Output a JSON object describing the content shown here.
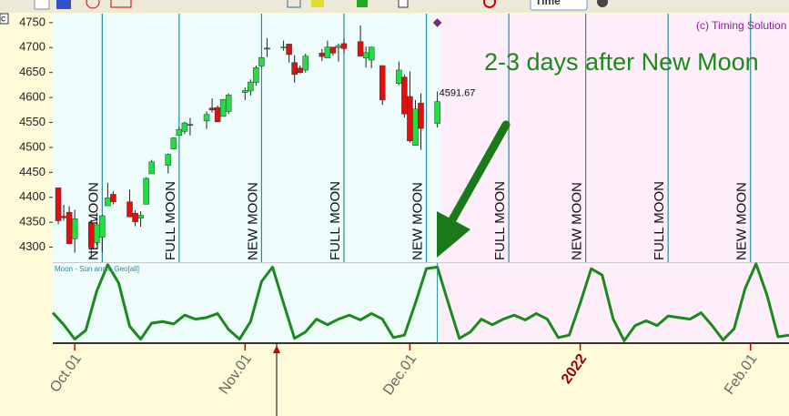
{
  "toolbar": {
    "corner_label": "c",
    "time_selector": "Time"
  },
  "chart_data": [
    {
      "type": "candlestick",
      "credit": "(c) Timing Solution",
      "annotation": "2-3 days after New Moon",
      "x": [
        -3,
        -2,
        -1,
        0,
        3,
        4,
        5,
        6,
        7,
        10,
        11,
        12,
        13,
        14,
        17,
        18,
        19,
        20,
        21,
        24,
        25,
        26,
        27,
        28,
        31,
        32,
        33,
        34,
        35,
        38,
        39,
        40,
        41,
        42,
        45,
        46,
        47,
        48,
        49,
        52,
        53,
        54,
        56,
        59,
        60,
        61,
        62,
        63,
        66
      ],
      "open": [
        4419,
        4362,
        4370,
        4317,
        4348,
        4309,
        4320,
        4383,
        4406,
        4391,
        4368,
        4358,
        4386,
        4447,
        4464,
        4497,
        4524,
        4532,
        4546,
        4553,
        4579,
        4580,
        4562,
        4572,
        4610,
        4613,
        4630,
        4663,
        4699,
        4701,
        4707,
        4670,
        4659,
        4655,
        4689,
        4679,
        4701,
        4700,
        4708,
        4712,
        4679,
        4675,
        4664,
        4628,
        4641,
        4602,
        4504,
        4589,
        4548
      ],
      "high": [
        4419,
        4385,
        4382,
        4375,
        4355,
        4369,
        4365,
        4429,
        4412,
        4415,
        4374,
        4372,
        4440,
        4475,
        4488,
        4520,
        4540,
        4551,
        4559,
        4572,
        4598,
        4584,
        4597,
        4608,
        4620,
        4636,
        4664,
        4681,
        4719,
        4714,
        4708,
        4685,
        4664,
        4688,
        4697,
        4714,
        4701,
        4708,
        4718,
        4744,
        4702,
        4702,
        4664,
        4672,
        4646,
        4652,
        4595,
        4608,
        4612
      ],
      "low": [
        4346,
        4353,
        4306,
        4289,
        4278,
        4305,
        4290,
        4383,
        4386,
        4360,
        4342,
        4341,
        4386,
        4447,
        4448,
        4496,
        4524,
        4527,
        4524,
        4537,
        4570,
        4551,
        4562,
        4567,
        4595,
        4604,
        4624,
        4661,
        4681,
        4694,
        4670,
        4630,
        4648,
        4650,
        4673,
        4679,
        4684,
        4672,
        4689,
        4682,
        4660,
        4659,
        4585,
        4625,
        4560,
        4510,
        4504,
        4495,
        4540
      ],
      "close": [
        4353,
        4359,
        4307,
        4357,
        4300,
        4345,
        4363,
        4399,
        4391,
        4361,
        4351,
        4364,
        4438,
        4471,
        4486,
        4519,
        4536,
        4549,
        4545,
        4566,
        4575,
        4551,
        4596,
        4605,
        4614,
        4631,
        4660,
        4680,
        4697,
        4701,
        4686,
        4646,
        4650,
        4683,
        4682,
        4701,
        4689,
        4704,
        4698,
        4683,
        4690,
        4701,
        4595,
        4655,
        4567,
        4513,
        4577,
        4538,
        4591.67
      ],
      "up_color": "#22dd44",
      "down_color": "#dd1111",
      "events": [
        {
          "x": 5,
          "label": "NEW MOON"
        },
        {
          "x": 19,
          "label": "FULL MOON"
        },
        {
          "x": 34,
          "label": "NEW MOON"
        },
        {
          "x": 49,
          "label": "FULL MOON"
        },
        {
          "x": 64,
          "label": "NEW MOON"
        },
        {
          "x": 79,
          "label": "FULL MOON"
        },
        {
          "x": 93,
          "label": "NEW MOON"
        },
        {
          "x": 108,
          "label": "FULL MOON"
        },
        {
          "x": 123,
          "label": "NEW MOON"
        }
      ],
      "xlim": [
        -4,
        130
      ],
      "ylim": [
        4270,
        4768
      ],
      "yticks": [
        4300,
        4350,
        4400,
        4450,
        4500,
        4550,
        4600,
        4650,
        4700,
        4750
      ]
    },
    {
      "type": "line",
      "name": "Moon - Sun angle Geo[all]",
      "color": "#1a8a1a",
      "x": [
        -4,
        -2,
        0,
        2,
        4,
        6,
        8,
        10,
        12,
        14,
        16,
        18,
        20,
        22,
        24,
        26,
        28,
        30,
        32,
        34,
        36,
        38,
        40,
        42,
        44,
        46,
        48,
        50,
        52,
        54,
        56,
        58,
        60,
        62,
        64,
        66,
        68,
        70,
        72,
        74,
        76,
        78,
        80,
        82,
        84,
        86,
        88,
        90,
        92,
        94,
        96,
        98,
        100,
        102,
        104,
        106,
        108,
        110,
        112,
        114,
        116,
        118,
        120,
        122,
        124,
        126,
        128,
        130
      ],
      "values": [
        38,
        23,
        5,
        16,
        65,
        98,
        75,
        21,
        5,
        25,
        27,
        24,
        35,
        30,
        32,
        37,
        17,
        5,
        27,
        77,
        95,
        50,
        6,
        14,
        30,
        23,
        30,
        35,
        29,
        37,
        30,
        7,
        10,
        50,
        93,
        95,
        50,
        6,
        14,
        30,
        23,
        30,
        35,
        29,
        37,
        30,
        7,
        10,
        50,
        93,
        85,
        30,
        3,
        22,
        28,
        22,
        34,
        32,
        30,
        38,
        22,
        4,
        18,
        68,
        99,
        60,
        8,
        10
      ],
      "xlim": [
        -4,
        130
      ],
      "ylim": [
        0,
        100
      ],
      "xticks": [
        {
          "value": 0,
          "label": "Oct.01"
        },
        {
          "value": 31,
          "label": "Nov.01"
        },
        {
          "value": 61,
          "label": "Dec.01"
        },
        {
          "value": 92,
          "label": "2022"
        },
        {
          "value": 123,
          "label": "Feb.01"
        }
      ]
    }
  ]
}
